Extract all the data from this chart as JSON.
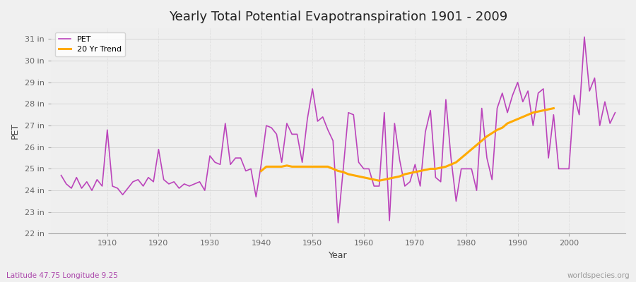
{
  "title": "Yearly Total Potential Evapotranspiration 1901 - 2009",
  "xlabel": "Year",
  "ylabel": "PET",
  "background_color": "#f0f0f0",
  "plot_bg_color": "#efefef",
  "pet_color": "#bb44bb",
  "trend_color": "#ffaa00",
  "subtitle_left": "Latitude 47.75 Longitude 9.25",
  "subtitle_right": "worldspecies.org",
  "ylim": [
    22,
    31.5
  ],
  "yticks": [
    22,
    23,
    24,
    25,
    26,
    27,
    28,
    29,
    30,
    31
  ],
  "ytick_labels": [
    "22 in",
    "23 in",
    "24 in",
    "25 in",
    "26 in",
    "27 in",
    "28 in",
    "29 in",
    "30 in",
    "31 in"
  ],
  "years": [
    1901,
    1902,
    1903,
    1904,
    1905,
    1906,
    1907,
    1908,
    1909,
    1910,
    1911,
    1912,
    1913,
    1914,
    1915,
    1916,
    1917,
    1918,
    1919,
    1920,
    1921,
    1922,
    1923,
    1924,
    1925,
    1926,
    1927,
    1928,
    1929,
    1930,
    1931,
    1932,
    1933,
    1934,
    1935,
    1936,
    1937,
    1938,
    1939,
    1940,
    1941,
    1942,
    1943,
    1944,
    1945,
    1946,
    1947,
    1948,
    1949,
    1950,
    1951,
    1952,
    1953,
    1954,
    1955,
    1956,
    1957,
    1958,
    1959,
    1960,
    1961,
    1962,
    1963,
    1964,
    1965,
    1966,
    1967,
    1968,
    1969,
    1970,
    1971,
    1972,
    1973,
    1974,
    1975,
    1976,
    1977,
    1978,
    1979,
    1980,
    1981,
    1982,
    1983,
    1984,
    1985,
    1986,
    1987,
    1988,
    1989,
    1990,
    1991,
    1992,
    1993,
    1994,
    1995,
    1996,
    1997,
    1998,
    1999,
    2000,
    2001,
    2002,
    2003,
    2004,
    2005,
    2006,
    2007,
    2008,
    2009
  ],
  "pet": [
    24.7,
    24.3,
    24.1,
    24.6,
    24.1,
    24.4,
    24.0,
    24.5,
    24.2,
    26.8,
    24.2,
    24.1,
    23.8,
    24.1,
    24.4,
    24.5,
    24.2,
    24.6,
    24.4,
    25.9,
    24.5,
    24.3,
    24.4,
    24.1,
    24.3,
    24.2,
    24.3,
    24.4,
    24.0,
    25.6,
    25.3,
    25.2,
    27.1,
    25.2,
    25.5,
    25.5,
    24.9,
    25.0,
    23.7,
    25.2,
    27.0,
    26.9,
    26.6,
    25.3,
    27.1,
    26.6,
    26.6,
    25.3,
    27.3,
    28.7,
    27.2,
    27.4,
    26.8,
    26.3,
    22.5,
    25.0,
    27.6,
    27.5,
    25.3,
    25.0,
    25.0,
    24.2,
    24.2,
    27.6,
    22.6,
    27.1,
    25.4,
    24.2,
    24.4,
    25.2,
    24.2,
    26.7,
    27.7,
    24.6,
    24.4,
    28.2,
    25.5,
    23.5,
    25.0,
    25.0,
    25.0,
    24.0,
    27.8,
    25.5,
    24.5,
    27.8,
    28.5,
    27.6,
    28.4,
    29.0,
    28.1,
    28.6,
    27.0,
    28.5,
    28.7,
    25.5,
    27.5,
    25.0,
    25.0,
    25.0,
    28.4,
    27.5,
    31.1,
    28.6,
    29.2,
    27.0,
    28.1,
    27.1,
    27.6
  ],
  "trend": [
    null,
    null,
    null,
    null,
    null,
    null,
    null,
    null,
    null,
    null,
    null,
    null,
    null,
    null,
    null,
    null,
    null,
    null,
    null,
    null,
    null,
    null,
    null,
    null,
    null,
    null,
    null,
    null,
    null,
    null,
    null,
    null,
    null,
    null,
    null,
    null,
    null,
    null,
    null,
    24.9,
    25.1,
    25.1,
    25.1,
    25.1,
    25.15,
    25.1,
    25.1,
    25.1,
    25.1,
    25.1,
    25.1,
    25.1,
    25.1,
    25.0,
    24.9,
    24.85,
    24.75,
    24.7,
    24.65,
    24.6,
    24.55,
    24.5,
    24.45,
    24.5,
    24.55,
    24.6,
    24.65,
    24.75,
    24.8,
    24.85,
    24.9,
    24.95,
    25.0,
    25.0,
    25.05,
    25.1,
    25.2,
    25.3,
    25.5,
    25.7,
    25.9,
    26.1,
    26.3,
    26.5,
    26.65,
    26.8,
    26.9,
    27.1,
    27.2,
    27.3,
    27.4,
    27.5,
    27.6,
    27.65,
    27.7,
    27.75,
    27.8,
    null,
    null,
    null,
    null,
    null,
    null,
    null,
    null,
    null,
    null,
    null
  ]
}
